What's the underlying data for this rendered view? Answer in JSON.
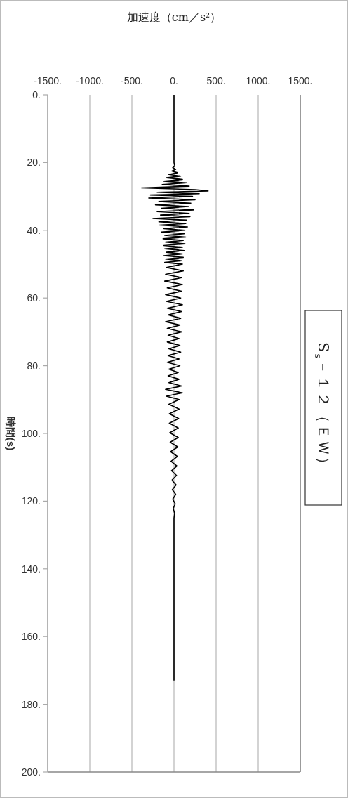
{
  "chart_data": {
    "type": "line",
    "xlabel": "加速度（cm／s$^{2}$）",
    "ylabel": "時間(s)",
    "annotations": [
      "S$_{s}$－１２（ＥＷ）"
    ],
    "x": [
      0,
      0,
      10,
      -15,
      20,
      -25,
      40,
      -60,
      80,
      -90,
      100,
      -120,
      150,
      -140,
      180,
      -386,
      250,
      405,
      -200,
      300,
      -280,
      220,
      -300,
      250,
      -180,
      200,
      -220,
      170,
      -150,
      230,
      -200,
      180,
      -160,
      190,
      -250,
      150,
      -180,
      140,
      -170,
      160,
      -120,
      130,
      -150,
      120,
      -110,
      140,
      -130,
      110,
      -100,
      130,
      -120,
      100,
      -110,
      120,
      -90,
      100,
      -120,
      110,
      -100,
      90,
      -110,
      100,
      -90,
      110,
      -100,
      90,
      -110,
      100,
      -80,
      90,
      -100,
      80,
      -90,
      100,
      -80,
      90,
      -70,
      80,
      -100,
      70,
      -80,
      90,
      -70,
      60,
      -80,
      70,
      -60,
      80,
      -70,
      60,
      -80,
      70,
      -60,
      50,
      -70,
      60,
      -60,
      90,
      -100,
      100,
      -90,
      60,
      -60,
      60,
      -55,
      55,
      -55,
      50,
      -50,
      50,
      -45,
      45,
      -40,
      40,
      -35,
      35,
      -30,
      30,
      -25,
      25,
      -20,
      20,
      -15,
      15,
      -10,
      8,
      0,
      0
    ],
    "series": [
      {
        "color": "#000000",
        "values": [
          0,
          20,
          21,
          21.5,
          22,
          22.5,
          23,
          23.5,
          24,
          24.5,
          25,
          25.5,
          26,
          26.5,
          27,
          27.5,
          28,
          28.4,
          28.8,
          29.2,
          29.6,
          30,
          30.5,
          31,
          31.5,
          32,
          32.5,
          33,
          33.5,
          34,
          34.5,
          35,
          35.5,
          36,
          36.5,
          37,
          37.5,
          38,
          38.5,
          39,
          39.5,
          40,
          40.5,
          41,
          41.5,
          42,
          42.5,
          43,
          43.5,
          44,
          44.5,
          45,
          45.5,
          46,
          46.5,
          47,
          47.5,
          48,
          48.5,
          49,
          49.5,
          50,
          51,
          52,
          53,
          54,
          55,
          56,
          57,
          58,
          59,
          60,
          61,
          62,
          63,
          64,
          65,
          66,
          67,
          68,
          69,
          70,
          71,
          72,
          73,
          74,
          75,
          76,
          77,
          78,
          79,
          80,
          81,
          82,
          83,
          84,
          85,
          86,
          87,
          88,
          89,
          90,
          91.4,
          92.8,
          94.2,
          95.6,
          97,
          98.4,
          99.8,
          101.2,
          102.6,
          104,
          105.4,
          106.8,
          108.2,
          109.6,
          111,
          112.4,
          113.8,
          115.2,
          116.6,
          118,
          119.4,
          120.8,
          122.2,
          123.6,
          125,
          173
        ]
      }
    ],
    "xlim": [
      -1500,
      1500
    ],
    "xticks": [
      {
        "value": -1500,
        "label": "-1500."
      },
      {
        "value": -1000,
        "label": "-1000."
      },
      {
        "value": -500,
        "label": "-500."
      },
      {
        "value": 0,
        "label": "0."
      },
      {
        "value": 500,
        "label": "500."
      },
      {
        "value": 1000,
        "label": "1000."
      },
      {
        "value": 1500,
        "label": "1500."
      }
    ],
    "ylim": [
      200,
      0
    ],
    "yticks": [
      {
        "value": 0,
        "label": "0."
      },
      {
        "value": 20,
        "label": "20."
      },
      {
        "value": 40,
        "label": "40."
      },
      {
        "value": 60,
        "label": "60."
      },
      {
        "value": 80,
        "label": "80."
      },
      {
        "value": 100,
        "label": "100."
      },
      {
        "value": 120,
        "label": "120."
      },
      {
        "value": 140,
        "label": "140."
      },
      {
        "value": 160,
        "label": "160."
      },
      {
        "value": 180,
        "label": "180."
      },
      {
        "value": 200,
        "label": "200."
      }
    ],
    "grid": "x"
  }
}
